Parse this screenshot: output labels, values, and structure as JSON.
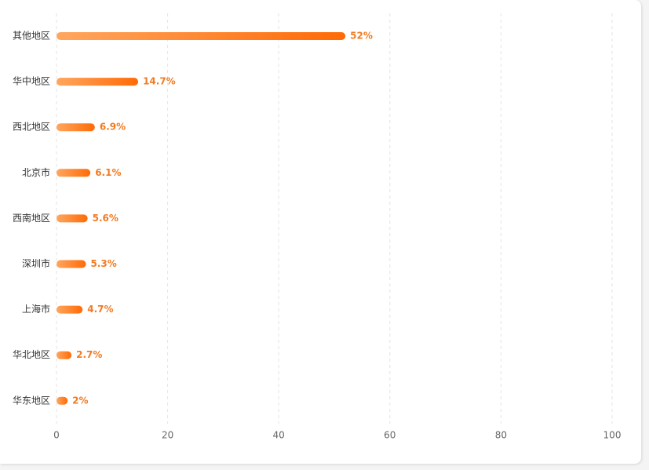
{
  "chart_data": {
    "type": "bar",
    "orientation": "horizontal",
    "categories": [
      "其他地区",
      "华中地区",
      "西北地区",
      "北京市",
      "西南地区",
      "深圳市",
      "上海市",
      "华北地区",
      "华东地区"
    ],
    "values": [
      52,
      14.7,
      6.9,
      6.1,
      5.6,
      5.3,
      4.7,
      2.7,
      2
    ],
    "value_labels": [
      "52%",
      "14.7%",
      "6.9%",
      "6.1%",
      "5.6%",
      "5.3%",
      "4.7%",
      "2.7%",
      "2%"
    ],
    "gradient": [
      "#ffa65e",
      "#ff6a06"
    ],
    "label_color": "#f27b22",
    "xlim": [
      0,
      100
    ],
    "xticks": [
      0,
      20,
      40,
      60,
      80,
      100
    ],
    "grid": true
  }
}
